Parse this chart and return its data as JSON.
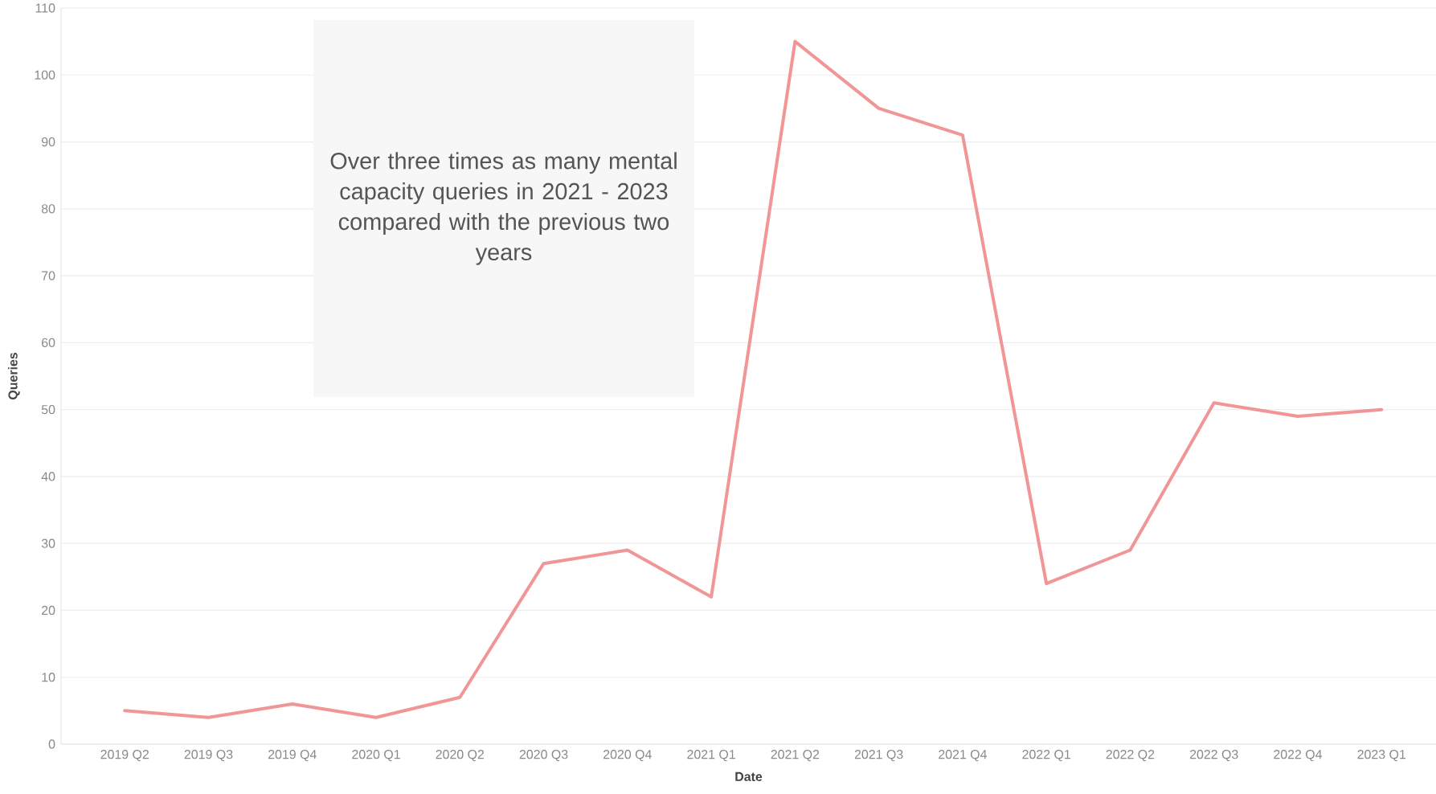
{
  "chart_data": {
    "type": "line",
    "xlabel": "Date",
    "ylabel": "Queries",
    "categories": [
      "2019 Q2",
      "2019 Q3",
      "2019 Q4",
      "2020 Q1",
      "2020 Q2",
      "2020 Q3",
      "2020 Q4",
      "2021 Q1",
      "2021 Q2",
      "2021 Q3",
      "2021 Q4",
      "2022 Q1",
      "2022 Q2",
      "2022 Q3",
      "2022 Q4",
      "2023 Q1"
    ],
    "series": [
      {
        "color": "#f09696",
        "values": [
          5,
          4,
          6,
          4,
          7,
          27,
          29,
          22,
          105,
          95,
          91,
          24,
          29,
          51,
          49,
          50
        ]
      }
    ],
    "ylim": [
      0,
      110
    ],
    "yticks": [
      0,
      10,
      20,
      30,
      40,
      50,
      60,
      70,
      80,
      90,
      100,
      110
    ],
    "grid": "y",
    "line_style": "solid",
    "annotations": [
      "Over three times as many mental capacity queries in 2021 - 2023 compared with the previous two years"
    ]
  }
}
